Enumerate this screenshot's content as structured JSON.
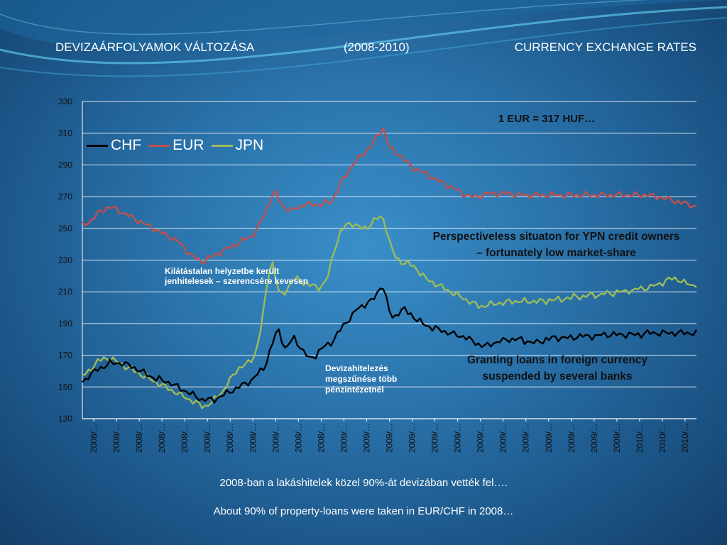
{
  "header": {
    "title_hu": "DEVIZAÁRFOLYAMOK VÁLTOZÁSA",
    "period": "(2008-2010)",
    "title_en": "CURRENCY EXCHANGE RATES"
  },
  "colors": {
    "CHF": "#000000",
    "EUR": "#c0504d",
    "JPN": "#9bbb59",
    "gridline": "#ffffff"
  },
  "chart_data": {
    "type": "line",
    "ylim": [
      130,
      330
    ],
    "yticks": [
      130,
      150,
      170,
      190,
      210,
      230,
      250,
      270,
      290,
      310,
      330
    ],
    "xtick_labels": [
      "2008/…",
      "2008/…",
      "2008/…",
      "2008/…",
      "2008/…",
      "2008/…",
      "2008/…",
      "2008/…",
      "2008/…",
      "2008/…",
      "2008/…",
      "2009/…",
      "2009/…",
      "2009/…",
      "2009/…",
      "2009/…",
      "2009/…",
      "2009/…",
      "2009/…",
      "2009/…",
      "2009/…",
      "2009/…",
      "2009/…",
      "2009/…",
      "2010/…",
      "2010/…",
      "2010/…"
    ],
    "grid": true,
    "legend_position": "top-left",
    "x": [
      0,
      1,
      2,
      3,
      4,
      5,
      6,
      7,
      8,
      9,
      10,
      11,
      12,
      13,
      14,
      15,
      16,
      17,
      18,
      19,
      20,
      21,
      22,
      23,
      24,
      25,
      26,
      27,
      28,
      29,
      30,
      31,
      32,
      33,
      34,
      35,
      36,
      37,
      38,
      39,
      40,
      41,
      42,
      43,
      44,
      45,
      46,
      47,
      48,
      49,
      50,
      51,
      52,
      53,
      54,
      55,
      56,
      57,
      58,
      59,
      60,
      61,
      62,
      63,
      64,
      65,
      66,
      67,
      68,
      69,
      70,
      71,
      72,
      73,
      74,
      75,
      76,
      77,
      78,
      79,
      80,
      81,
      82,
      83,
      84,
      85,
      86,
      87,
      88,
      89,
      90,
      91,
      92,
      93,
      94,
      95,
      96,
      97,
      98,
      99,
      100,
      101,
      102,
      103,
      104,
      105,
      106,
      107,
      108,
      109,
      110,
      111,
      112,
      113,
      114,
      115,
      116,
      117,
      118,
      119,
      120,
      121,
      122,
      123,
      124,
      125,
      126,
      127,
      128,
      129,
      130,
      131,
      132,
      133,
      134,
      135,
      136,
      137,
      138,
      139,
      140,
      141,
      142,
      143,
      144,
      145,
      146,
      147,
      148,
      149,
      150,
      151,
      152,
      153,
      154,
      155,
      156,
      157,
      158,
      159,
      160,
      161,
      162,
      163,
      164,
      165,
      166,
      167,
      168,
      169,
      170,
      171,
      172,
      173,
      174,
      175,
      176,
      177,
      178,
      179,
      180,
      181,
      182,
      183,
      184,
      185,
      186,
      187,
      188,
      189,
      190,
      191,
      192,
      193,
      194,
      195,
      196,
      197,
      198,
      199,
      200
    ],
    "series": [
      {
        "name": "CHF",
        "values": [
          153,
          155,
          157,
          158,
          160,
          161,
          162,
          163,
          164,
          165,
          165,
          165,
          165,
          165,
          164,
          164,
          163,
          162,
          161,
          160,
          159,
          158,
          157,
          156,
          155,
          155,
          154,
          154,
          153,
          152,
          151,
          150,
          149,
          148,
          147,
          146,
          145,
          144,
          143,
          142,
          142,
          142,
          142,
          142,
          143,
          144,
          145,
          146,
          147,
          148,
          149,
          150,
          151,
          152,
          153,
          154,
          156,
          158,
          160,
          162,
          166,
          172,
          178,
          183,
          186,
          180,
          174,
          176,
          179,
          181,
          178,
          175,
          172,
          170,
          168,
          169,
          170,
          172,
          174,
          176,
          177,
          178,
          180,
          183,
          186,
          189,
          191,
          193,
          195,
          198,
          200,
          201,
          202,
          203,
          204,
          206,
          209,
          213,
          213,
          205,
          198,
          194,
          195,
          197,
          198,
          199,
          197,
          196,
          194,
          192,
          191,
          190,
          189,
          188,
          187,
          187,
          186,
          186,
          185,
          184,
          184,
          183,
          183,
          182,
          182,
          181,
          180,
          179,
          178,
          177,
          176,
          176,
          176,
          177,
          178,
          178,
          179,
          179,
          180,
          180,
          180,
          180,
          180,
          180,
          179,
          179,
          178,
          178,
          178,
          179,
          179,
          180,
          180,
          181,
          181,
          181,
          181,
          181,
          181,
          181,
          181,
          182,
          182,
          182,
          182,
          182,
          182,
          182,
          182,
          183,
          183,
          183,
          183,
          183,
          183,
          183,
          183,
          183,
          183,
          183,
          183,
          183,
          183,
          184,
          184,
          184,
          184,
          184,
          184,
          184,
          184,
          184,
          184,
          184,
          184,
          184,
          184,
          184,
          184,
          184,
          184
        ]
      },
      {
        "name": "EUR",
        "values": [
          252,
          253,
          254,
          255,
          257,
          259,
          261,
          262,
          263,
          263,
          263,
          262,
          261,
          260,
          259,
          258,
          257,
          256,
          255,
          254,
          253,
          252,
          251,
          250,
          249,
          248,
          247,
          246,
          245,
          244,
          243,
          242,
          240,
          238,
          236,
          234,
          232,
          231,
          230,
          229,
          230,
          231,
          232,
          233,
          234,
          235,
          236,
          237,
          238,
          239,
          240,
          241,
          242,
          243,
          244,
          245,
          247,
          250,
          254,
          258,
          262,
          267,
          271,
          272,
          268,
          265,
          263,
          262,
          261,
          262,
          263,
          264,
          265,
          265,
          265,
          265,
          265,
          265,
          265,
          266,
          266,
          267,
          270,
          274,
          278,
          281,
          284,
          287,
          290,
          292,
          294,
          296,
          298,
          300,
          302,
          305,
          308,
          311,
          313,
          307,
          301,
          299,
          298,
          297,
          295,
          293,
          291,
          289,
          288,
          287,
          286,
          285,
          284,
          283,
          282,
          281,
          280,
          279,
          278,
          277,
          276,
          275,
          274,
          273,
          272,
          271,
          270,
          270,
          270,
          270,
          271,
          271,
          272,
          272,
          272,
          272,
          272,
          272,
          272,
          272,
          272,
          271,
          271,
          271,
          271,
          271,
          271,
          271,
          271,
          271,
          271,
          271,
          271,
          271,
          271,
          271,
          271,
          271,
          271,
          271,
          271,
          271,
          271,
          271,
          271,
          271,
          271,
          271,
          271,
          271,
          271,
          271,
          271,
          271,
          271,
          271,
          271,
          271,
          271,
          271,
          271,
          271,
          271,
          271,
          271,
          271,
          270,
          270,
          270,
          269,
          269,
          268,
          268,
          267,
          267,
          266,
          266,
          265,
          265,
          264,
          264
        ]
      },
      {
        "name": "JPN",
        "values": [
          157,
          158,
          160,
          162,
          164,
          166,
          167,
          168,
          168,
          168,
          167,
          166,
          165,
          164,
          163,
          162,
          161,
          160,
          159,
          158,
          157,
          156,
          155,
          154,
          153,
          152,
          151,
          150,
          149,
          148,
          147,
          146,
          145,
          144,
          143,
          142,
          141,
          140,
          139,
          138,
          138,
          139,
          140,
          142,
          144,
          146,
          148,
          151,
          154,
          157,
          160,
          162,
          163,
          164,
          165,
          167,
          170,
          176,
          186,
          198,
          212,
          225,
          228,
          218,
          210,
          208,
          210,
          213,
          216,
          218,
          218,
          217,
          216,
          215,
          214,
          214,
          213,
          213,
          214,
          216,
          220,
          228,
          236,
          242,
          247,
          250,
          252,
          253,
          253,
          252,
          251,
          250,
          250,
          251,
          253,
          255,
          256,
          257,
          256,
          250,
          242,
          236,
          232,
          230,
          229,
          228,
          228,
          227,
          226,
          224,
          222,
          220,
          218,
          217,
          216,
          215,
          214,
          213,
          212,
          211,
          210,
          209,
          208,
          207,
          206,
          205,
          204,
          203,
          202,
          201,
          201,
          201,
          202,
          202,
          202,
          203,
          203,
          203,
          203,
          204,
          204,
          204,
          204,
          204,
          204,
          204,
          204,
          204,
          204,
          204,
          204,
          204,
          205,
          205,
          205,
          205,
          205,
          206,
          206,
          206,
          207,
          207,
          207,
          207,
          207,
          208,
          208,
          208,
          208,
          208,
          209,
          209,
          209,
          209,
          210,
          210,
          210,
          210,
          211,
          211,
          211,
          212,
          212,
          212,
          213,
          213,
          214,
          214,
          215,
          216,
          217,
          218,
          218,
          218,
          218,
          217,
          216,
          215,
          214,
          214,
          215
        ]
      }
    ]
  },
  "annotations": {
    "eur_peak": "1 EUR = 317 HUF…",
    "ypn_note": "Perspectiveless situaton for YPN credit owners – fortunately low market-share",
    "grant_note": "Granting loans in foreign currency suspended by several banks",
    "hu_yen_note": "Kilátástalan helyzetbe került jenhitelesek – szerencsére kevesen",
    "hu_banks_note": "Devizahitelezés megszűnése több pénzintézetnél"
  },
  "footer": {
    "line_hu": "2008-ban a lakáshitelek közel 90%-át devizában vették fel….",
    "line_en": "About 90% of property-loans were taken in EUR/CHF in 2008…"
  }
}
